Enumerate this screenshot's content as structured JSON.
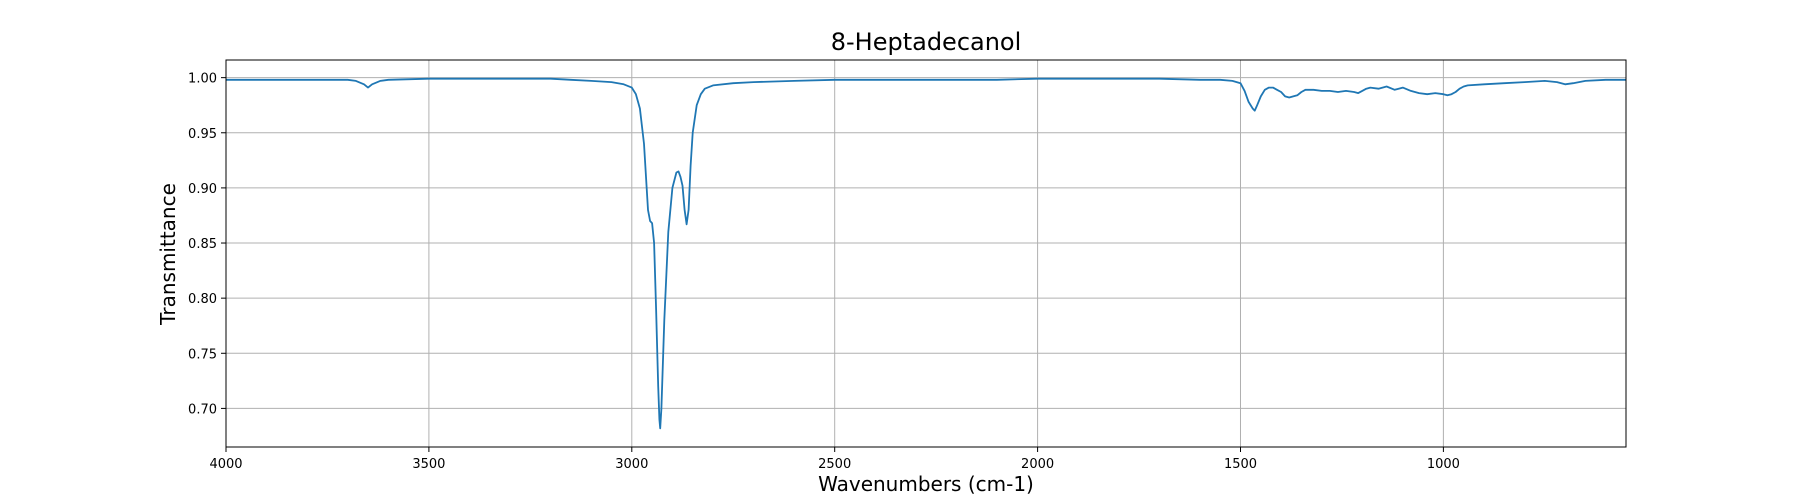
{
  "chart_data": {
    "type": "line",
    "title": "8-Heptadecanol",
    "xlabel": "Wavenumbers (cm-1)",
    "ylabel": "Transmittance",
    "xlim": [
      4000,
      550
    ],
    "ylim": [
      0.665,
      1.016
    ],
    "x_reversed": true,
    "grid": true,
    "x_ticks": [
      4000,
      3500,
      3000,
      2500,
      2000,
      1500,
      1000
    ],
    "x_tick_labels": [
      "4000",
      "3500",
      "3000",
      "2500",
      "2000",
      "1500",
      "1000"
    ],
    "y_ticks": [
      0.7,
      0.75,
      0.8,
      0.85,
      0.9,
      0.95,
      1.0
    ],
    "y_tick_labels": [
      "0.70",
      "0.75",
      "0.80",
      "0.85",
      "0.90",
      "0.95",
      "1.00"
    ],
    "series": [
      {
        "color": "#1f77b4",
        "x": [
          4000,
          3900,
          3800,
          3700,
          3680,
          3660,
          3650,
          3640,
          3620,
          3600,
          3500,
          3400,
          3300,
          3200,
          3150,
          3100,
          3050,
          3020,
          3000,
          2990,
          2980,
          2970,
          2960,
          2955,
          2950,
          2945,
          2940,
          2935,
          2932,
          2930,
          2927,
          2920,
          2910,
          2900,
          2890,
          2885,
          2880,
          2875,
          2870,
          2865,
          2860,
          2855,
          2850,
          2840,
          2830,
          2820,
          2800,
          2750,
          2700,
          2600,
          2500,
          2400,
          2300,
          2200,
          2100,
          2000,
          1900,
          1800,
          1700,
          1600,
          1550,
          1520,
          1500,
          1490,
          1480,
          1470,
          1465,
          1460,
          1450,
          1440,
          1430,
          1420,
          1410,
          1400,
          1390,
          1380,
          1370,
          1360,
          1350,
          1340,
          1320,
          1300,
          1280,
          1260,
          1240,
          1220,
          1210,
          1200,
          1190,
          1180,
          1160,
          1140,
          1120,
          1100,
          1080,
          1060,
          1040,
          1020,
          1000,
          990,
          980,
          970,
          960,
          950,
          940,
          900,
          850,
          800,
          750,
          720,
          700,
          680,
          650,
          600,
          560,
          550
        ],
        "y": [
          0.998,
          0.998,
          0.998,
          0.998,
          0.997,
          0.994,
          0.991,
          0.994,
          0.997,
          0.998,
          0.999,
          0.999,
          0.999,
          0.999,
          0.998,
          0.997,
          0.996,
          0.994,
          0.991,
          0.985,
          0.972,
          0.94,
          0.88,
          0.87,
          0.868,
          0.85,
          0.79,
          0.72,
          0.69,
          0.682,
          0.7,
          0.78,
          0.86,
          0.9,
          0.914,
          0.915,
          0.91,
          0.902,
          0.88,
          0.867,
          0.88,
          0.92,
          0.95,
          0.975,
          0.985,
          0.99,
          0.993,
          0.995,
          0.996,
          0.997,
          0.998,
          0.998,
          0.998,
          0.998,
          0.998,
          0.999,
          0.999,
          0.999,
          0.999,
          0.998,
          0.998,
          0.997,
          0.995,
          0.988,
          0.978,
          0.972,
          0.97,
          0.974,
          0.983,
          0.989,
          0.991,
          0.991,
          0.989,
          0.987,
          0.983,
          0.982,
          0.983,
          0.984,
          0.987,
          0.989,
          0.989,
          0.988,
          0.988,
          0.987,
          0.988,
          0.987,
          0.986,
          0.988,
          0.99,
          0.991,
          0.99,
          0.992,
          0.989,
          0.991,
          0.988,
          0.986,
          0.985,
          0.986,
          0.985,
          0.984,
          0.985,
          0.987,
          0.99,
          0.992,
          0.993,
          0.994,
          0.995,
          0.996,
          0.997,
          0.996,
          0.994,
          0.995,
          0.997,
          0.998,
          0.998,
          0.998
        ]
      }
    ]
  }
}
